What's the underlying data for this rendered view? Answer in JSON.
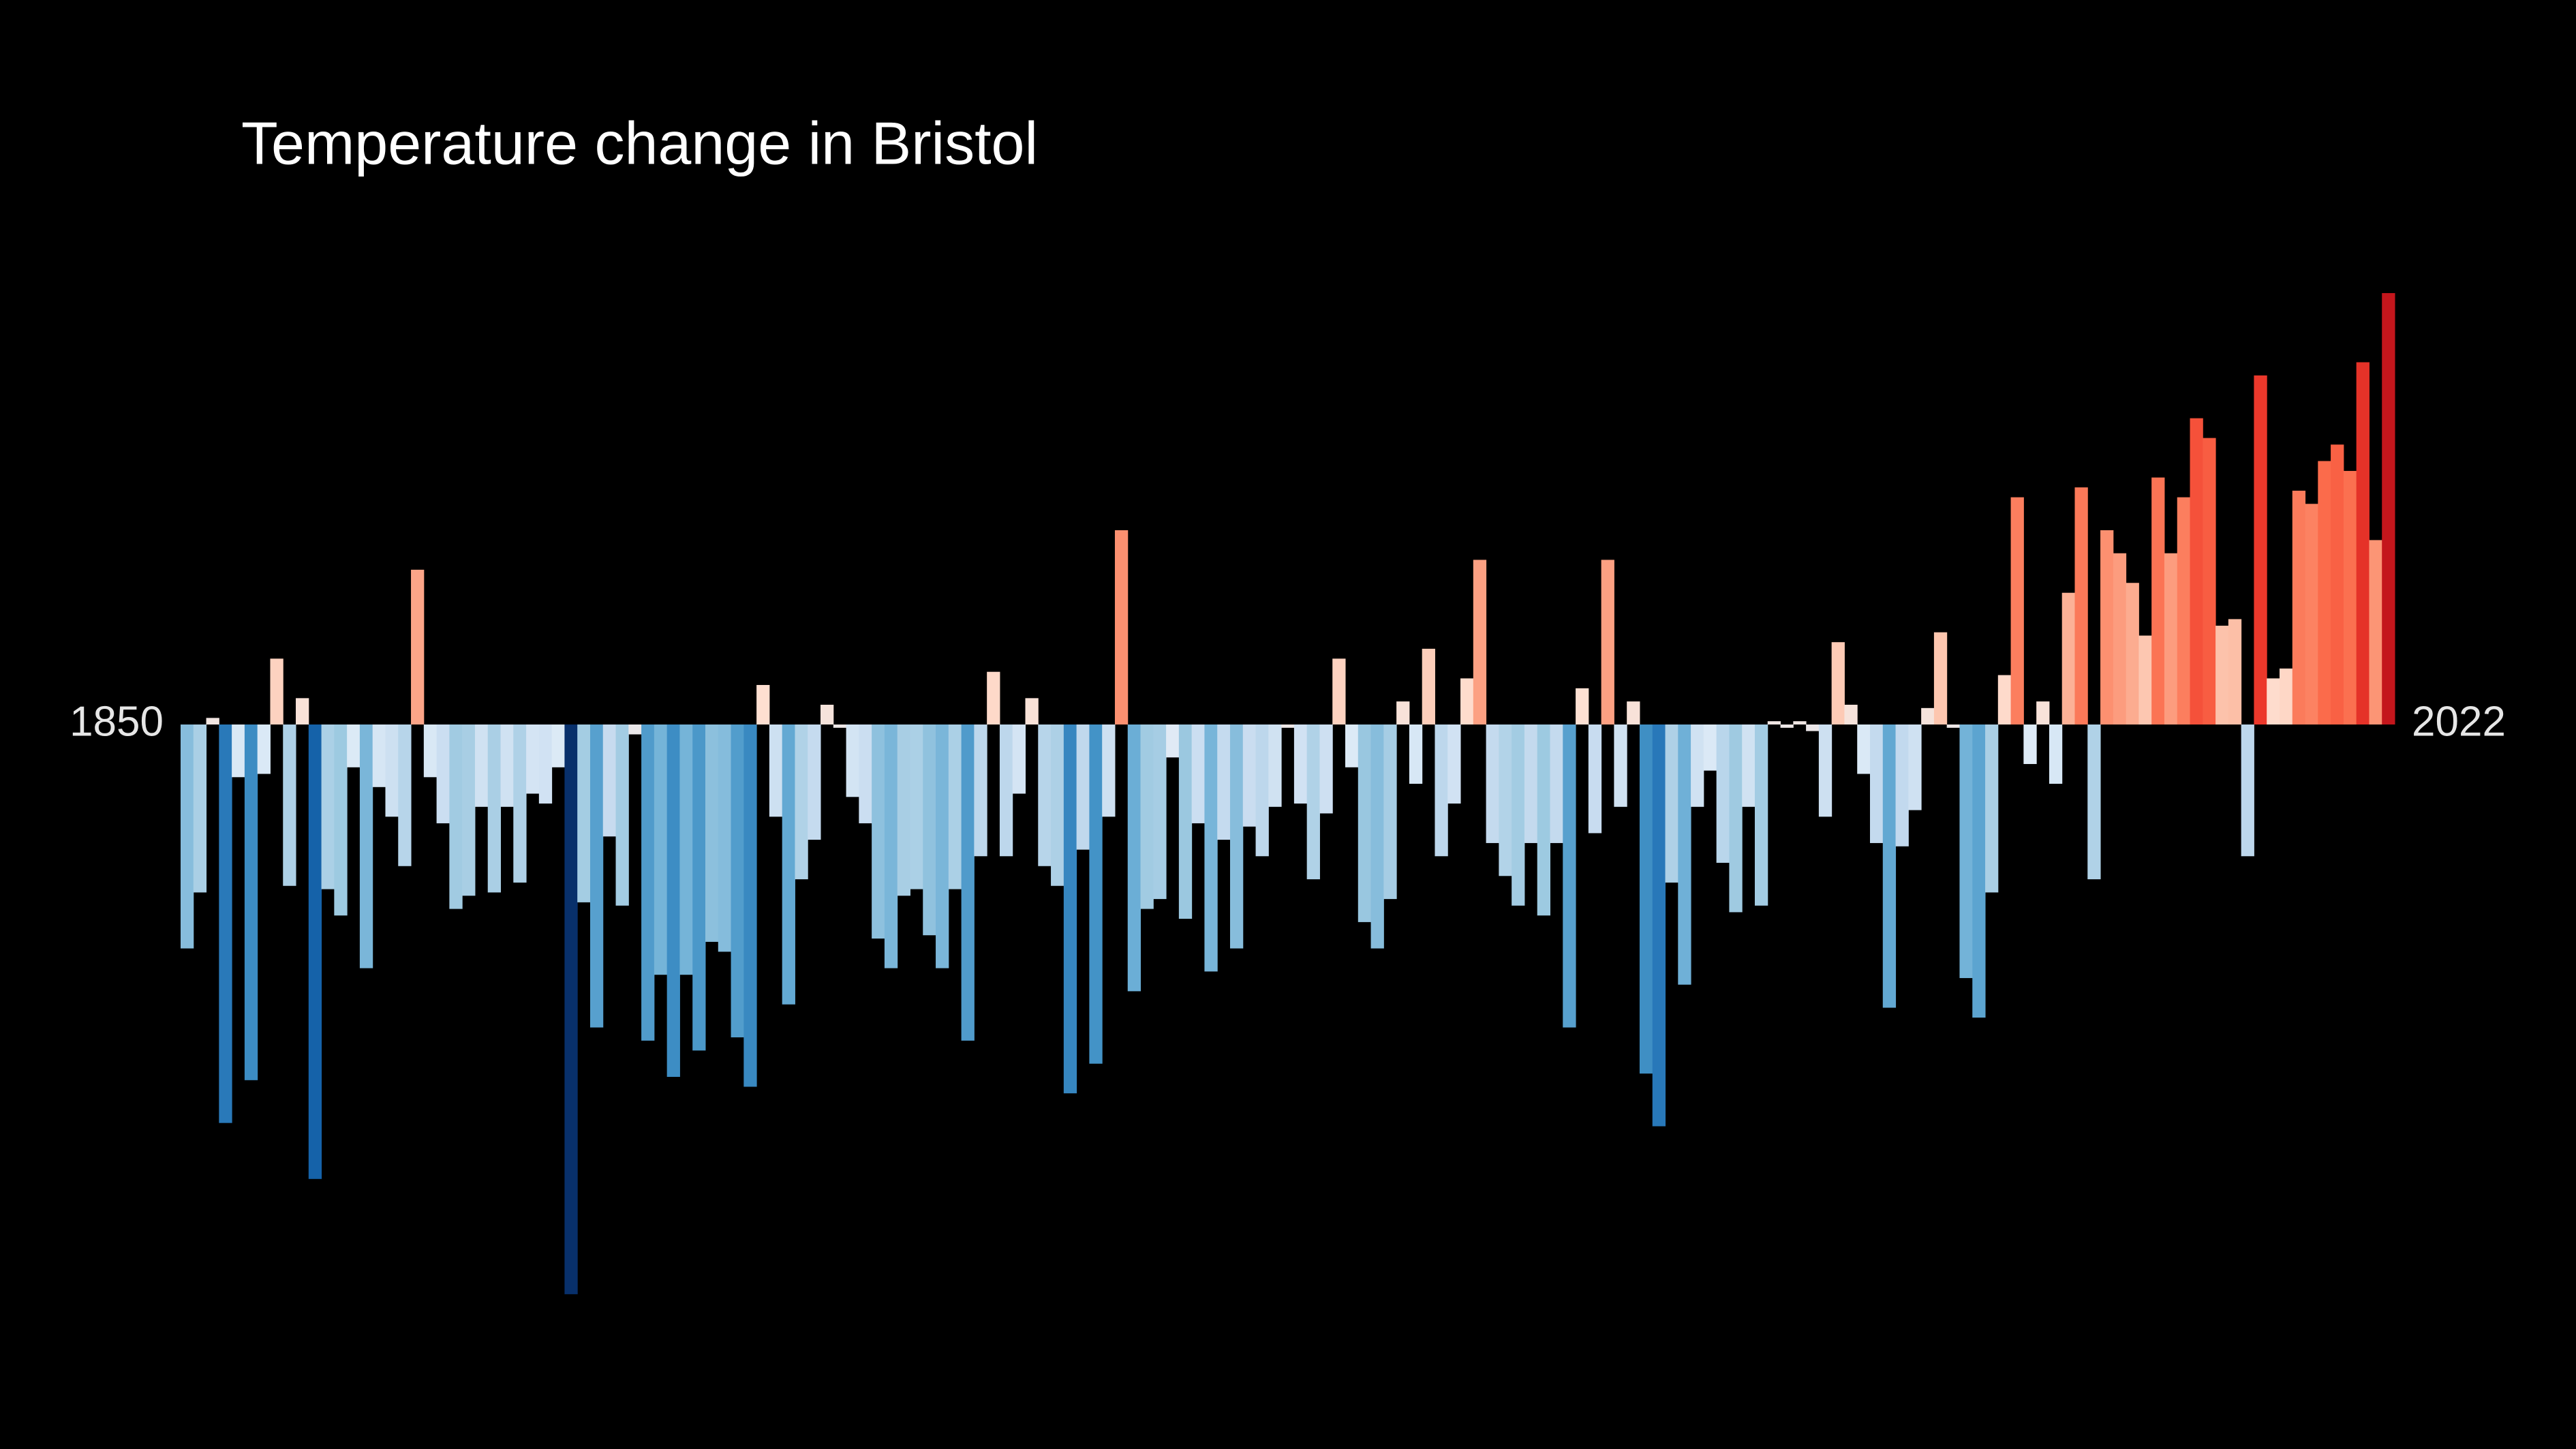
{
  "chart_data": {
    "type": "bar",
    "title": "Temperature change in Bristol",
    "categories": [
      "1850",
      null,
      null,
      null,
      null,
      null,
      null,
      null,
      null,
      null,
      null,
      null,
      null,
      null,
      null,
      null,
      null,
      null,
      null,
      null,
      null,
      null,
      null,
      null,
      null,
      null,
      null,
      null,
      null,
      null,
      null,
      null,
      null,
      null,
      null,
      null,
      null,
      null,
      null,
      null,
      null,
      null,
      null,
      null,
      null,
      null,
      null,
      null,
      null,
      null,
      null,
      null,
      null,
      null,
      null,
      null,
      null,
      null,
      null,
      null,
      null,
      null,
      null,
      null,
      null,
      null,
      null,
      null,
      null,
      null,
      null,
      null,
      null,
      null,
      null,
      null,
      null,
      null,
      null,
      null,
      null,
      null,
      null,
      null,
      null,
      null,
      null,
      null,
      null,
      null,
      null,
      null,
      null,
      null,
      null,
      null,
      null,
      null,
      null,
      null,
      null,
      null,
      null,
      null,
      null,
      null,
      null,
      null,
      null,
      null,
      null,
      null,
      null,
      null,
      null,
      null,
      null,
      null,
      null,
      null,
      null,
      null,
      null,
      null,
      null,
      null,
      null,
      null,
      null,
      null,
      null,
      null,
      null,
      null,
      null,
      null,
      null,
      null,
      null,
      null,
      null,
      null,
      null,
      null,
      null,
      null,
      null,
      null,
      null,
      null,
      null,
      null,
      null,
      null,
      null,
      null,
      null,
      null,
      null,
      null,
      null,
      null,
      null,
      null,
      null,
      null,
      null,
      null,
      null,
      null,
      null,
      null,
      "2022"
    ],
    "values": [
      -0.68,
      -0.51,
      0.02,
      -1.21,
      -0.16,
      -1.08,
      -0.15,
      0.2,
      -0.49,
      0.08,
      -1.38,
      -0.5,
      -0.58,
      -0.13,
      -0.74,
      -0.19,
      -0.28,
      -0.43,
      0.47,
      -0.16,
      -0.3,
      -0.56,
      -0.52,
      -0.25,
      -0.51,
      -0.25,
      -0.48,
      -0.21,
      -0.24,
      -0.13,
      -1.73,
      -0.54,
      -0.92,
      -0.34,
      -0.55,
      -0.03,
      -0.96,
      -0.76,
      -1.07,
      -0.76,
      -0.99,
      -0.66,
      -0.69,
      -0.95,
      -1.1,
      0.12,
      -0.28,
      -0.85,
      -0.47,
      -0.35,
      0.06,
      -0.01,
      -0.22,
      -0.3,
      -0.65,
      -0.74,
      -0.52,
      -0.5,
      -0.64,
      -0.74,
      -0.5,
      -0.96,
      -0.4,
      0.16,
      -0.4,
      -0.21,
      0.08,
      -0.43,
      -0.49,
      -1.12,
      -0.38,
      -1.03,
      -0.28,
      0.59,
      -0.81,
      -0.56,
      -0.53,
      -0.1,
      -0.59,
      -0.3,
      -0.75,
      -0.35,
      -0.68,
      -0.31,
      -0.4,
      -0.25,
      -0.01,
      -0.24,
      -0.47,
      -0.27,
      0.2,
      -0.13,
      -0.6,
      -0.68,
      -0.53,
      0.07,
      -0.18,
      0.23,
      -0.4,
      -0.24,
      0.14,
      0.5,
      -0.36,
      -0.46,
      -0.55,
      -0.36,
      -0.58,
      -0.36,
      -0.92,
      0.11,
      -0.33,
      0.5,
      -0.25,
      0.07,
      -1.06,
      -1.22,
      -0.48,
      -0.79,
      -0.25,
      -0.14,
      -0.42,
      -0.57,
      -0.25,
      -0.55,
      0.01,
      -0.01,
      0.01,
      -0.02,
      -0.28,
      0.25,
      0.06,
      -0.15,
      -0.36,
      -0.86,
      -0.37,
      -0.26,
      0.05,
      0.28,
      -0.01,
      -0.77,
      -0.89,
      -0.51,
      0.15,
      0.69,
      -0.12,
      0.07,
      -0.18,
      0.4,
      0.72,
      -0.47,
      0.59,
      0.52,
      0.43,
      0.27,
      0.75,
      0.52,
      0.69,
      0.93,
      0.87,
      0.3,
      0.32,
      -0.4,
      1.06,
      0.14,
      0.17,
      0.71,
      0.67,
      0.8,
      0.85,
      0.77,
      1.1,
      0.56,
      1.31
    ],
    "ylim": [
      -2.2,
      2.2
    ],
    "colorscale": [
      "#08306b",
      "#08519c",
      "#2171b5",
      "#4292c6",
      "#6baed6",
      "#9ecae1",
      "#c6dbef",
      "#deebf7",
      "#fee0d2",
      "#fcbba1",
      "#fc9272",
      "#fb6a4a",
      "#ef3b2c",
      "#cb181d",
      "#a50f15",
      "#67000d"
    ]
  }
}
